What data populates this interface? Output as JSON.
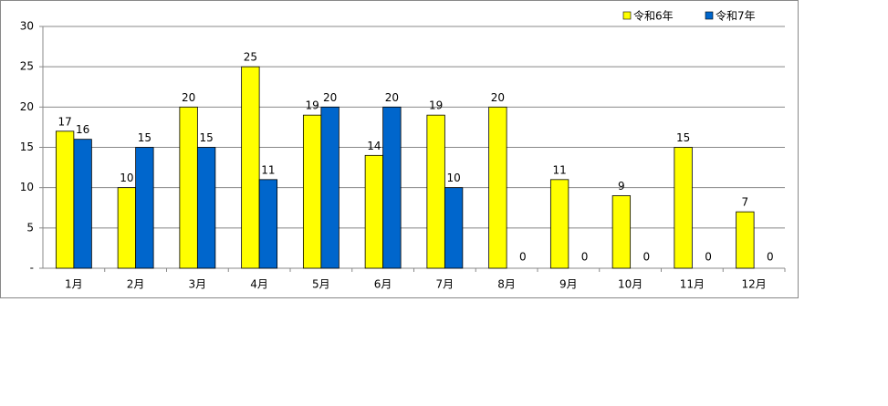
{
  "chart_data": {
    "type": "bar",
    "categories": [
      "1月",
      "2月",
      "3月",
      "4月",
      "5月",
      "6月",
      "7月",
      "8月",
      "9月",
      "10月",
      "11月",
      "12月"
    ],
    "series": [
      {
        "name": "令和6年",
        "color": "#ffff00",
        "values": [
          17,
          10,
          20,
          25,
          19,
          14,
          19,
          20,
          11,
          9,
          15,
          7
        ]
      },
      {
        "name": "令和7年",
        "color": "#0066cc",
        "values": [
          16,
          15,
          15,
          11,
          20,
          20,
          10,
          0,
          0,
          0,
          0,
          0
        ]
      }
    ],
    "ylim": [
      0,
      30
    ],
    "yticks": [
      {
        "value": 0,
        "label": "-"
      },
      5,
      10,
      15,
      20,
      25,
      30
    ],
    "grid": true,
    "legend": "top-right"
  }
}
